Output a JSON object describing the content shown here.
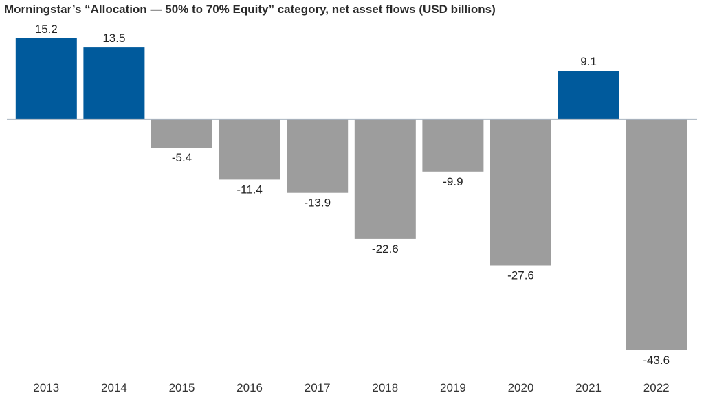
{
  "chart_data": {
    "type": "bar",
    "title": "Morningstar’s “Allocation — 50% to 70% Equity” category, net asset flows (USD billions)",
    "xlabel": "",
    "ylabel": "",
    "categories": [
      "2013",
      "2014",
      "2015",
      "2016",
      "2017",
      "2018",
      "2019",
      "2020",
      "2021",
      "2022"
    ],
    "values": [
      15.2,
      13.5,
      -5.4,
      -11.4,
      -13.9,
      -22.6,
      -9.9,
      -27.6,
      9.1,
      -43.6
    ],
    "value_labels": [
      "15.2",
      "13.5",
      "-5.4",
      "-11.4",
      "-13.9",
      "-22.6",
      "-9.9",
      "-27.6",
      "9.1",
      "-43.6"
    ],
    "ylim": [
      -43.6,
      15.2
    ],
    "grid": false,
    "legend": "none",
    "colors": {
      "positive": "#005a9c",
      "negative": "#9d9d9d",
      "zero_line": "#aab4c0"
    }
  }
}
